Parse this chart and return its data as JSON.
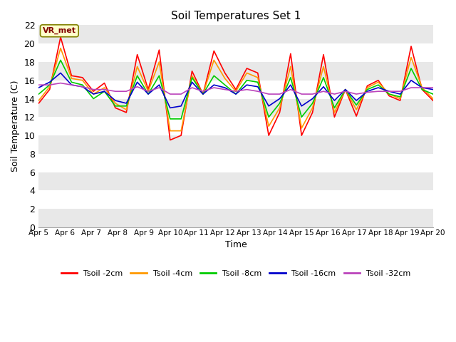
{
  "title": "Soil Temperatures Set 1",
  "xlabel": "Time",
  "ylabel": "Soil Temperature (C)",
  "ylim": [
    0,
    22
  ],
  "yticks": [
    0,
    2,
    4,
    6,
    8,
    10,
    12,
    14,
    16,
    18,
    20,
    22
  ],
  "figure_bg": "#ffffff",
  "plot_bg": "#ffffff",
  "band_colors": [
    "#e8e8e8",
    "#ffffff"
  ],
  "annotation_text": "VR_met",
  "annotation_bg": "#ffffcc",
  "annotation_border": "#808000",
  "annotation_text_color": "#800000",
  "x_labels": [
    "Apr 5",
    "Apr 6",
    "Apr 7",
    "Apr 8",
    "Apr 9",
    "Apr 10",
    "Apr 11",
    "Apr 12",
    "Apr 13",
    "Apr 14",
    "Apr 15",
    "Apr 16",
    "Apr 17",
    "Apr 18",
    "Apr 19",
    "Apr 20"
  ],
  "series": {
    "Tsoil -2cm": {
      "color": "#ff0000",
      "values": [
        13.5,
        15.0,
        20.7,
        16.5,
        16.3,
        14.8,
        15.7,
        13.0,
        12.5,
        18.8,
        15.0,
        19.3,
        9.5,
        10.0,
        17.0,
        14.5,
        19.2,
        16.8,
        15.0,
        17.3,
        16.8,
        10.0,
        12.5,
        18.9,
        10.0,
        12.5,
        18.8,
        12.0,
        15.0,
        12.1,
        15.4,
        16.0,
        14.3,
        13.8,
        19.7,
        15.0,
        13.8
      ]
    },
    "Tsoil -4cm": {
      "color": "#ff9900",
      "values": [
        13.8,
        15.3,
        19.5,
        16.2,
        16.0,
        14.5,
        15.2,
        13.5,
        12.8,
        17.5,
        14.8,
        18.0,
        10.5,
        10.5,
        16.5,
        14.5,
        18.2,
        16.2,
        14.8,
        16.8,
        16.3,
        11.0,
        13.0,
        17.5,
        10.8,
        13.0,
        17.5,
        12.5,
        15.0,
        12.8,
        15.2,
        15.8,
        14.5,
        14.0,
        18.5,
        15.2,
        14.0
      ]
    },
    "Tsoil -8cm": {
      "color": "#00cc00",
      "values": [
        14.5,
        15.5,
        18.2,
        15.8,
        15.5,
        14.0,
        14.8,
        13.2,
        13.2,
        16.5,
        14.5,
        16.5,
        11.8,
        11.8,
        16.3,
        14.5,
        16.5,
        15.5,
        14.5,
        16.0,
        15.8,
        12.0,
        13.5,
        16.3,
        12.0,
        13.5,
        16.3,
        13.0,
        15.0,
        13.3,
        15.0,
        15.5,
        14.5,
        14.2,
        17.3,
        15.0,
        14.5
      ]
    },
    "Tsoil -16cm": {
      "color": "#0000cc",
      "values": [
        15.2,
        15.8,
        16.8,
        15.5,
        15.3,
        14.5,
        14.8,
        13.8,
        13.5,
        15.8,
        14.5,
        15.5,
        13.0,
        13.2,
        15.8,
        14.5,
        15.5,
        15.2,
        14.5,
        15.5,
        15.3,
        13.2,
        14.0,
        15.5,
        13.2,
        14.0,
        15.3,
        13.8,
        15.0,
        13.8,
        14.8,
        15.2,
        14.8,
        14.5,
        16.0,
        15.2,
        15.0
      ]
    },
    "Tsoil -32cm": {
      "color": "#bb44bb",
      "values": [
        15.5,
        15.5,
        15.7,
        15.5,
        15.3,
        15.0,
        15.0,
        14.8,
        14.8,
        15.3,
        14.8,
        15.2,
        14.5,
        14.5,
        15.2,
        14.8,
        15.2,
        15.0,
        14.8,
        15.0,
        14.8,
        14.5,
        14.5,
        15.0,
        14.5,
        14.5,
        14.8,
        14.5,
        14.8,
        14.5,
        14.7,
        14.8,
        14.8,
        14.8,
        15.2,
        15.2,
        15.2
      ]
    }
  }
}
